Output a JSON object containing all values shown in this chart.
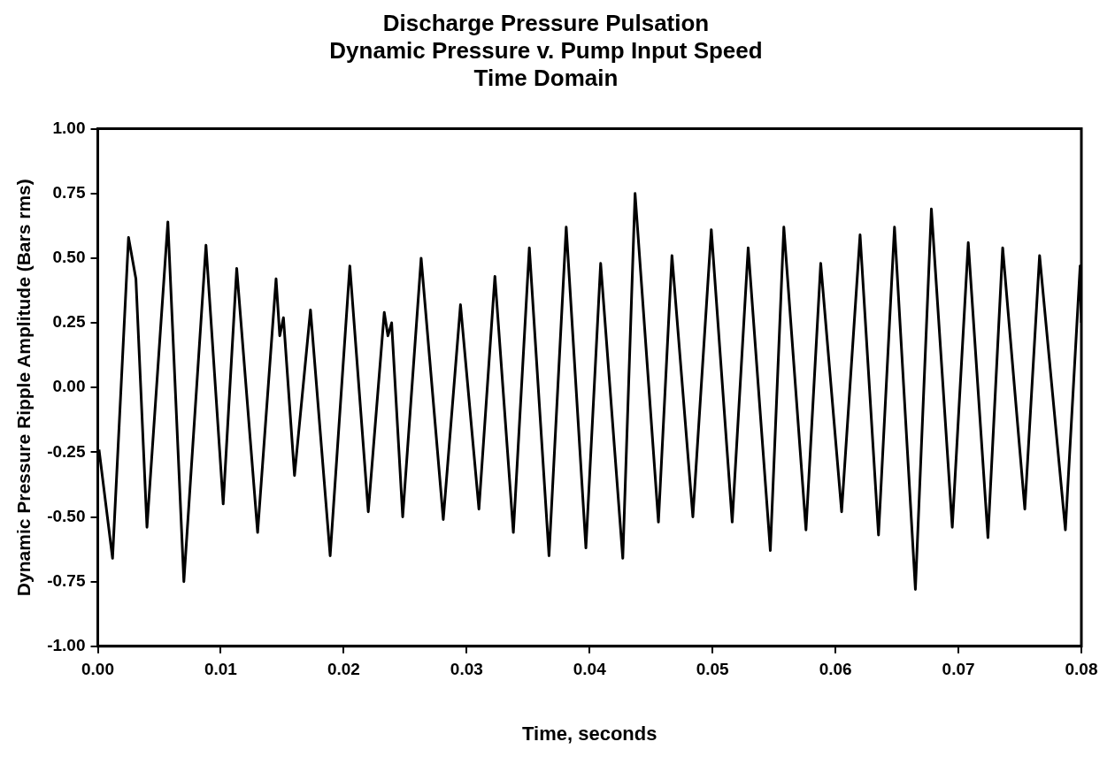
{
  "chart_data": {
    "type": "line",
    "title": "Discharge Pressure Pulsation\nDynamic Pressure v. Pump Input Speed\nTime Domain",
    "xlabel": "Time, seconds",
    "ylabel": "Dynamic Pressure Ripple Amplitude (Bars rms)",
    "x": [
      0.0001,
      0.0012,
      0.0025,
      0.0031,
      0.004,
      0.0057,
      0.007,
      0.0088,
      0.0102,
      0.0113,
      0.013,
      0.0145,
      0.0148,
      0.0151,
      0.016,
      0.0173,
      0.0189,
      0.0205,
      0.022,
      0.0233,
      0.0236,
      0.0239,
      0.0248,
      0.0263,
      0.0281,
      0.0295,
      0.031,
      0.0323,
      0.0338,
      0.0351,
      0.0367,
      0.0381,
      0.0397,
      0.0409,
      0.0427,
      0.0437,
      0.0456,
      0.0467,
      0.0484,
      0.0499,
      0.0516,
      0.0529,
      0.0547,
      0.0558,
      0.0576,
      0.0588,
      0.0605,
      0.062,
      0.0635,
      0.0648,
      0.0665,
      0.0678,
      0.0695,
      0.0708,
      0.0724,
      0.0736,
      0.0754,
      0.0766,
      0.0787,
      0.0799,
      0.08
    ],
    "series": [
      {
        "color": "#000000",
        "values": [
          -0.24,
          -0.66,
          0.58,
          0.42,
          -0.54,
          0.64,
          -0.75,
          0.55,
          -0.45,
          0.46,
          -0.56,
          0.42,
          0.2,
          0.27,
          -0.34,
          0.3,
          -0.65,
          0.47,
          -0.48,
          0.29,
          0.2,
          0.25,
          -0.5,
          0.5,
          -0.51,
          0.32,
          -0.47,
          0.43,
          -0.56,
          0.54,
          -0.65,
          0.62,
          -0.62,
          0.48,
          -0.66,
          0.75,
          -0.52,
          0.51,
          -0.5,
          0.61,
          -0.52,
          0.54,
          -0.63,
          0.62,
          -0.55,
          0.48,
          -0.48,
          0.59,
          -0.57,
          0.62,
          -0.78,
          0.69,
          -0.54,
          0.56,
          -0.58,
          0.54,
          -0.47,
          0.51,
          -0.55,
          0.47,
          0.25
        ]
      }
    ],
    "xlim": [
      0,
      0.08
    ],
    "ylim": [
      -1,
      1
    ],
    "xticks": [
      {
        "value": 0,
        "label": "0.00"
      },
      {
        "value": 0.01,
        "label": "0.01"
      },
      {
        "value": 0.02,
        "label": "0.02"
      },
      {
        "value": 0.03,
        "label": "0.03"
      },
      {
        "value": 0.04,
        "label": "0.04"
      },
      {
        "value": 0.05,
        "label": "0.05"
      },
      {
        "value": 0.06,
        "label": "0.06"
      },
      {
        "value": 0.07,
        "label": "0.07"
      },
      {
        "value": 0.08,
        "label": "0.08"
      }
    ],
    "yticks": [
      {
        "value": -1,
        "label": "-1.00"
      },
      {
        "value": -0.75,
        "label": "-0.75"
      },
      {
        "value": -0.5,
        "label": "-0.50"
      },
      {
        "value": -0.25,
        "label": "-0.25"
      },
      {
        "value": 0,
        "label": "0.00"
      },
      {
        "value": 0.25,
        "label": "0.25"
      },
      {
        "value": 0.5,
        "label": "0.50"
      },
      {
        "value": 0.75,
        "label": "0.75"
      },
      {
        "value": 1,
        "label": "1.00"
      }
    ],
    "grid": false,
    "legend": false,
    "marker": "none",
    "line_style": "solid"
  }
}
